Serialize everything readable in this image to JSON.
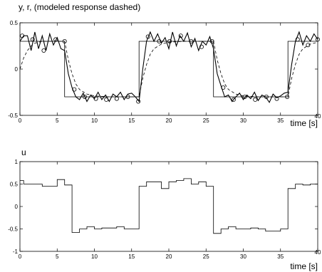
{
  "chart_data": [
    {
      "type": "line",
      "title": "y, r, (modeled response dashed)",
      "xlabel": "time [s]",
      "ylabel": "",
      "xlim": [
        0,
        40
      ],
      "ylim": [
        -0.5,
        0.5
      ],
      "xticks": [
        "0",
        "5",
        "10",
        "15",
        "20",
        "25",
        "30",
        "35",
        "40"
      ],
      "yticks": [
        "0.5",
        "0",
        "-0.5"
      ],
      "ytick_values": [
        0.5,
        0,
        -0.5
      ],
      "grid": false,
      "series": [
        {
          "style": "solid-thin",
          "x": [
            0,
            6,
            6,
            16,
            16,
            26,
            26,
            36,
            36,
            40
          ],
          "y": [
            0.3,
            0.3,
            -0.3,
            -0.3,
            0.3,
            0.3,
            -0.3,
            -0.3,
            0.3,
            0.3
          ]
        },
        {
          "style": "dashed",
          "x": [
            0,
            0.5,
            1,
            1.5,
            2,
            3,
            4,
            5,
            6,
            6.5,
            7,
            7.5,
            8,
            9,
            10,
            12,
            14,
            16,
            16.5,
            17,
            17.5,
            18,
            19,
            20,
            22,
            24,
            26,
            26.5,
            27,
            27.5,
            28,
            29,
            30,
            32,
            34,
            36,
            36.5,
            37,
            37.5,
            38,
            39,
            40
          ],
          "y": [
            0,
            0.12,
            0.2,
            0.25,
            0.28,
            0.3,
            0.3,
            0.3,
            0.3,
            0.1,
            -0.05,
            -0.16,
            -0.22,
            -0.27,
            -0.29,
            -0.3,
            -0.3,
            -0.3,
            -0.1,
            0.05,
            0.16,
            0.22,
            0.27,
            0.29,
            0.3,
            0.3,
            0.3,
            0.1,
            -0.05,
            -0.16,
            -0.22,
            -0.27,
            -0.29,
            -0.3,
            -0.3,
            -0.3,
            -0.1,
            0.05,
            0.16,
            0.22,
            0.27,
            0.29
          ]
        },
        {
          "style": "solid-noisy",
          "markers": "circle",
          "x": [
            0,
            0.5,
            1,
            1.5,
            2,
            2.5,
            3,
            3.5,
            4,
            4.5,
            5,
            5.5,
            6,
            6.5,
            7,
            7.5,
            8,
            8.5,
            9,
            9.5,
            10,
            10.5,
            11,
            11.5,
            12,
            12.5,
            13,
            13.5,
            14,
            14.5,
            15,
            15.5,
            16,
            16.5,
            17,
            17.5,
            18,
            18.5,
            19,
            19.5,
            20,
            20.5,
            21,
            21.5,
            22,
            22.5,
            23,
            23.5,
            24,
            24.5,
            25,
            25.5,
            26,
            26.5,
            27,
            27.5,
            28,
            28.5,
            29,
            29.5,
            30,
            30.5,
            31,
            31.5,
            32,
            32.5,
            33,
            33.5,
            34,
            34.5,
            35,
            35.5,
            36,
            36.5,
            37,
            37.5,
            38,
            38.5,
            39,
            39.5,
            40
          ],
          "y": [
            0.3,
            0.36,
            0.36,
            0.2,
            0.4,
            0.22,
            0.36,
            0.2,
            0.38,
            0.26,
            0.34,
            0.22,
            0.2,
            -0.05,
            -0.2,
            -0.3,
            -0.33,
            -0.26,
            -0.35,
            -0.28,
            -0.32,
            -0.25,
            -0.33,
            -0.28,
            -0.35,
            -0.27,
            -0.3,
            -0.25,
            -0.33,
            -0.27,
            -0.26,
            -0.3,
            -0.35,
            0,
            0.3,
            0.4,
            0.3,
            0.38,
            0.28,
            0.34,
            0.22,
            0.4,
            0.25,
            0.36,
            0.3,
            0.39,
            0.24,
            0.33,
            0.2,
            0.3,
            0.26,
            0.35,
            0.22,
            -0.05,
            -0.18,
            -0.3,
            -0.28,
            -0.35,
            -0.3,
            -0.26,
            -0.33,
            -0.28,
            -0.32,
            -0.25,
            -0.34,
            -0.28,
            -0.3,
            -0.36,
            -0.27,
            -0.31,
            -0.29,
            -0.26,
            -0.25,
            0.05,
            0.3,
            0.4,
            0.26,
            0.36,
            0.3,
            0.38,
            0.32
          ],
          "marker_x": [
            0.3,
            1.7,
            3.2,
            4.8,
            6,
            7.3,
            8.7,
            10.2,
            11.6,
            13,
            14.5,
            15.9,
            17.2,
            18.7,
            20.1,
            21.6,
            23,
            24.4,
            25.8,
            27.3,
            28.7,
            30.2,
            31.6,
            33.1,
            34.5,
            35.9,
            37.3,
            38.7,
            40
          ],
          "marker_y": [
            0.36,
            0.32,
            0.2,
            0.32,
            0.3,
            -0.22,
            -0.3,
            -0.32,
            -0.33,
            -0.32,
            -0.3,
            -0.35,
            0.35,
            0.3,
            0.3,
            0.36,
            0.3,
            0.24,
            0.3,
            -0.2,
            -0.33,
            -0.3,
            -0.33,
            -0.3,
            -0.32,
            -0.3,
            0.32,
            0.26,
            0.32
          ]
        }
      ]
    },
    {
      "type": "line",
      "title": "u",
      "xlabel": "time [s]",
      "ylabel": "",
      "xlim": [
        0,
        40
      ],
      "ylim": [
        -1,
        1
      ],
      "xticks": [
        "0",
        "5",
        "10",
        "15",
        "20",
        "25",
        "30",
        "35",
        "40"
      ],
      "yticks": [
        "1",
        "0.5",
        "0",
        "-0.5",
        "-1"
      ],
      "ytick_values": [
        1,
        0.5,
        0,
        -0.5,
        -1
      ],
      "grid": false,
      "series": [
        {
          "style": "step",
          "x": [
            0,
            0.5,
            2,
            3,
            4,
            5,
            6,
            7,
            8,
            9,
            10,
            11,
            12,
            13,
            14,
            15,
            16,
            17,
            18,
            19,
            20,
            21,
            22,
            23,
            24,
            25,
            26,
            27,
            28,
            29,
            30,
            31,
            32,
            33,
            34,
            35,
            36,
            37,
            38,
            39,
            40
          ],
          "y": [
            0.58,
            0.5,
            0.5,
            0.45,
            0.45,
            0.6,
            0.48,
            -0.58,
            -0.5,
            -0.45,
            -0.5,
            -0.48,
            -0.48,
            -0.45,
            -0.5,
            -0.5,
            0.45,
            0.55,
            0.55,
            0.4,
            0.55,
            0.58,
            0.62,
            0.5,
            0.55,
            0.45,
            -0.6,
            -0.5,
            -0.45,
            -0.5,
            -0.5,
            -0.48,
            -0.5,
            -0.55,
            -0.55,
            -0.5,
            0.4,
            0.5,
            0.48,
            0.5,
            0.5
          ]
        }
      ]
    }
  ]
}
